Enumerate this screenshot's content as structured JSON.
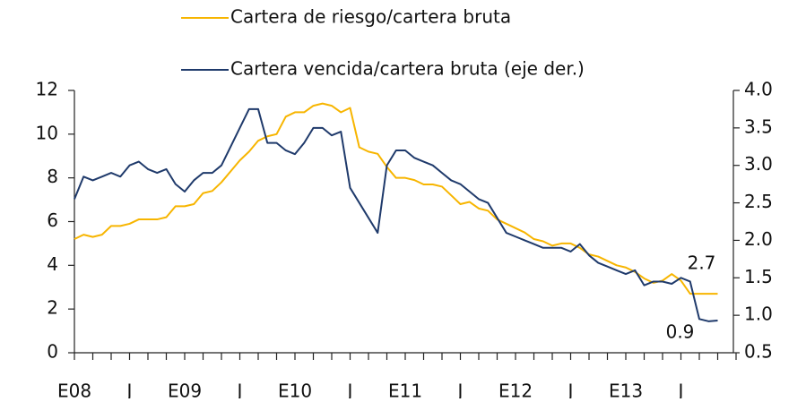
{
  "chart_data": {
    "type": "line",
    "categories": [
      "E08",
      null,
      null,
      null,
      null,
      null,
      "J",
      null,
      null,
      null,
      null,
      null,
      "E09",
      null,
      null,
      null,
      null,
      null,
      "J",
      null,
      null,
      null,
      null,
      null,
      "E10",
      null,
      null,
      null,
      null,
      null,
      "J",
      null,
      null,
      null,
      null,
      null,
      "E11",
      null,
      null,
      null,
      null,
      null,
      "J",
      null,
      null,
      null,
      null,
      null,
      "E12",
      null,
      null,
      null,
      null,
      null,
      "J",
      null,
      null,
      null,
      null,
      null,
      "E13",
      null,
      null,
      null,
      null,
      null,
      "J",
      null,
      null,
      null,
      null
    ],
    "series": [
      {
        "name": "Cartera de riesgo/cartera bruta",
        "color": "#f7b500",
        "axis": "y",
        "values": [
          5.2,
          5.4,
          5.3,
          5.4,
          5.8,
          5.8,
          5.9,
          6.1,
          6.1,
          6.1,
          6.2,
          6.7,
          6.7,
          6.8,
          7.3,
          7.4,
          7.8,
          8.3,
          8.8,
          9.2,
          9.7,
          9.9,
          10.0,
          10.8,
          11.0,
          11.0,
          11.3,
          11.4,
          11.3,
          11.0,
          11.2,
          9.4,
          9.2,
          9.1,
          8.5,
          8.0,
          8.0,
          7.9,
          7.7,
          7.7,
          7.6,
          7.2,
          6.8,
          6.9,
          6.6,
          6.5,
          6.1,
          5.9,
          5.7,
          5.5,
          5.2,
          5.1,
          4.9,
          5.0,
          5.0,
          4.8,
          4.5,
          4.4,
          4.2,
          4.0,
          3.9,
          3.7,
          3.4,
          3.2,
          3.3,
          3.6,
          3.3,
          2.7,
          2.7,
          2.7,
          2.7
        ],
        "value_labels": [
          null,
          null,
          null,
          null,
          null,
          null,
          null,
          null,
          null,
          null,
          null,
          null,
          null,
          null,
          null,
          null,
          null,
          null,
          null,
          null,
          null,
          null,
          null,
          null,
          null,
          null,
          null,
          null,
          null,
          null,
          null,
          null,
          null,
          null,
          null,
          null,
          null,
          null,
          null,
          null,
          null,
          null,
          null,
          null,
          null,
          null,
          null,
          null,
          null,
          null,
          null,
          null,
          null,
          null,
          null,
          null,
          null,
          null,
          null,
          null,
          null,
          null,
          null,
          null,
          null,
          null,
          null,
          null,
          null,
          null,
          "2.7"
        ]
      },
      {
        "name": "Cartera vencida/cartera bruta (eje der.)",
        "color": "#1f3a6b",
        "axis": "y2",
        "values": [
          2.55,
          2.85,
          2.8,
          2.85,
          2.9,
          2.85,
          3.0,
          3.05,
          2.95,
          2.9,
          2.95,
          2.75,
          2.65,
          2.8,
          2.9,
          2.9,
          3.0,
          3.25,
          3.5,
          3.75,
          3.75,
          3.3,
          3.3,
          3.2,
          3.15,
          3.3,
          3.5,
          3.5,
          3.4,
          3.45,
          2.7,
          2.5,
          2.3,
          2.1,
          3.0,
          3.2,
          3.2,
          3.1,
          3.05,
          3.0,
          2.9,
          2.8,
          2.75,
          2.65,
          2.55,
          2.5,
          2.3,
          2.1,
          2.05,
          2.0,
          1.95,
          1.9,
          1.9,
          1.9,
          1.85,
          1.95,
          1.8,
          1.7,
          1.65,
          1.6,
          1.55,
          1.6,
          1.4,
          1.45,
          1.45,
          1.42,
          1.5,
          1.45,
          0.95,
          0.92,
          0.93
        ],
        "value_labels": [
          null,
          null,
          null,
          null,
          null,
          null,
          null,
          null,
          null,
          null,
          null,
          null,
          null,
          null,
          null,
          null,
          null,
          null,
          null,
          null,
          null,
          null,
          null,
          null,
          null,
          null,
          null,
          null,
          null,
          null,
          null,
          null,
          null,
          null,
          null,
          null,
          null,
          null,
          null,
          null,
          null,
          null,
          null,
          null,
          null,
          null,
          null,
          null,
          null,
          null,
          null,
          null,
          null,
          null,
          null,
          null,
          null,
          null,
          null,
          null,
          null,
          null,
          null,
          null,
          null,
          null,
          null,
          null,
          null,
          null,
          "0.9"
        ]
      }
    ],
    "ylim": [
      0,
      12
    ],
    "yticks": [
      0,
      2,
      4,
      6,
      8,
      10,
      12
    ],
    "y2lim": [
      0.5,
      4.0
    ],
    "y2ticks": [
      {
        "value": 0.5,
        "label": "0.5"
      },
      {
        "value": 1.0,
        "label": "1.0"
      },
      1.5,
      {
        "value": 2.0,
        "label": "2.0"
      },
      2.5,
      {
        "value": 3.0,
        "label": "3.0"
      },
      3.5,
      {
        "value": 4.0,
        "label": "4.0"
      }
    ],
    "grid": false
  }
}
